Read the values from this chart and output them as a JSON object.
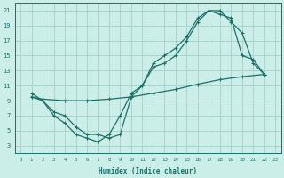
{
  "xlabel": "Humidex (Indice chaleur)",
  "bg_color": "#cceee8",
  "grid_color": "#aad4ce",
  "line_color": "#1a7068",
  "xlim": [
    -0.5,
    23.5
  ],
  "ylim": [
    2,
    22
  ],
  "xticks": [
    0,
    1,
    2,
    3,
    4,
    5,
    6,
    7,
    8,
    9,
    10,
    11,
    12,
    13,
    14,
    15,
    16,
    17,
    18,
    19,
    20,
    21,
    22,
    23
  ],
  "yticks": [
    3,
    5,
    7,
    9,
    11,
    13,
    15,
    17,
    19,
    21
  ],
  "line1_x": [
    1,
    2,
    3,
    4,
    5,
    6,
    7,
    8,
    9,
    10,
    11,
    12,
    13,
    14,
    15,
    16,
    17,
    18,
    19,
    20,
    21,
    22
  ],
  "line1_y": [
    10,
    9,
    7.5,
    7,
    5.5,
    4.5,
    4.5,
    4,
    4.5,
    9.5,
    11,
    14,
    15,
    16,
    17.5,
    20,
    21,
    20.5,
    20,
    15,
    14.5,
    12.5
  ],
  "line2_x": [
    1,
    2,
    3,
    4,
    5,
    6,
    7,
    8,
    9,
    10,
    11,
    12,
    13,
    14,
    15,
    16,
    17,
    18,
    19,
    20,
    21,
    22
  ],
  "line2_y": [
    9.5,
    9,
    7,
    6,
    4.5,
    4,
    3.5,
    4.5,
    7,
    10,
    11,
    13.5,
    14,
    15,
    17,
    19.5,
    21,
    21,
    19.5,
    18,
    14,
    12.5
  ],
  "line3_x": [
    1,
    2,
    4,
    6,
    8,
    10,
    12,
    14,
    16,
    18,
    20,
    22
  ],
  "line3_y": [
    9.5,
    9.2,
    9.0,
    9.0,
    9.2,
    9.5,
    10.0,
    10.5,
    11.2,
    11.8,
    12.2,
    12.5
  ]
}
